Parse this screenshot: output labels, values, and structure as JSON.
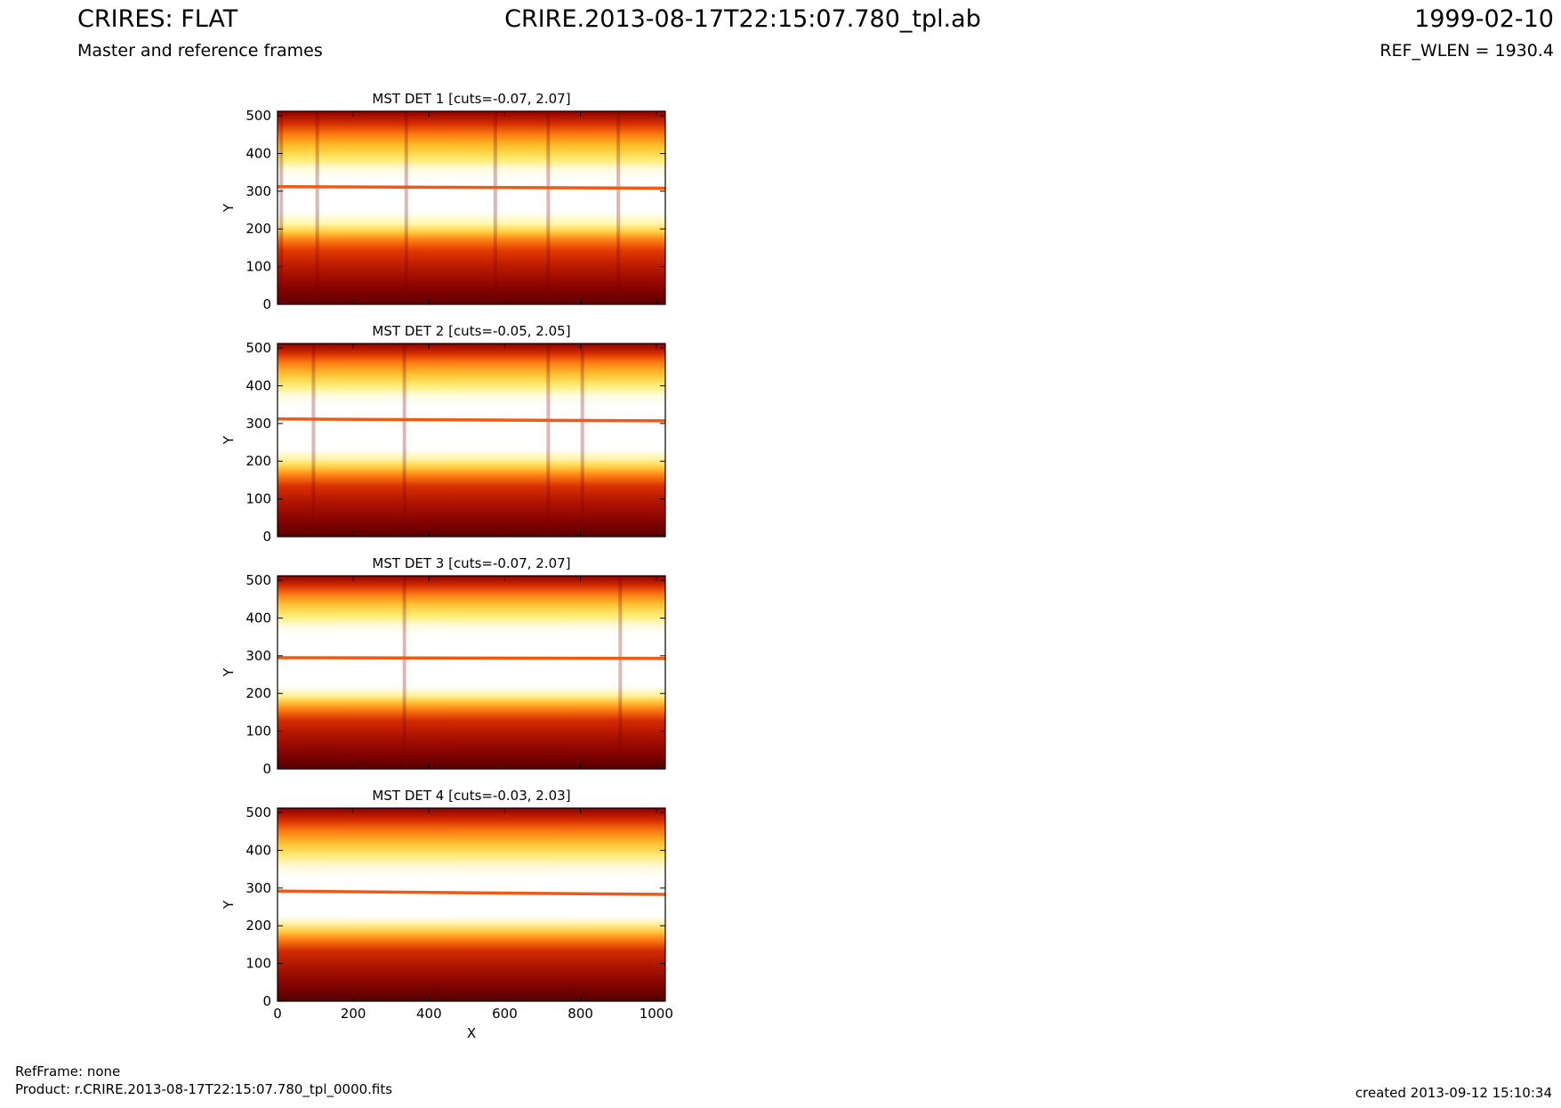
{
  "header": {
    "title_left": "CRIRES: FLAT",
    "subtitle_left": "Master and reference frames",
    "title_center": "CRIRE.2013-08-17T22:15:07.780_tpl.ab",
    "date_right": "1999-02-10",
    "refwlen_right": "REF_WLEN = 1930.4"
  },
  "footer": {
    "refframe": "RefFrame: none",
    "product": "Product: r.CRIRE.2013-08-17T22:15:07.780_tpl_0000.fits",
    "created": "created 2013-09-12 15:10:34"
  },
  "chart_data": [
    {
      "type": "heatmap",
      "title": "MST DET 1 [cuts=-0.07, 2.07]",
      "xlabel": "",
      "ylabel": "Y",
      "xlim": [
        0,
        1024
      ],
      "ylim": [
        0,
        512
      ],
      "x_ticks": [
        0,
        200,
        400,
        600,
        800,
        1000
      ],
      "y_ticks": [
        0,
        100,
        200,
        300,
        400,
        500
      ],
      "colormap": "hot",
      "cuts": [
        -0.07,
        2.07
      ],
      "horizontal_line_y": [
        312,
        308
      ],
      "vertical_streaks_x": [
        10,
        105,
        340,
        575,
        715,
        900
      ]
    },
    {
      "type": "heatmap",
      "title": "MST DET 2 [cuts=-0.05, 2.05]",
      "xlabel": "",
      "ylabel": "Y",
      "xlim": [
        0,
        1024
      ],
      "ylim": [
        0,
        512
      ],
      "x_ticks": [
        0,
        200,
        400,
        600,
        800,
        1000
      ],
      "y_ticks": [
        0,
        100,
        200,
        300,
        400,
        500
      ],
      "colormap": "hot",
      "cuts": [
        -0.05,
        2.05
      ],
      "horizontal_line_y": [
        312,
        307
      ],
      "vertical_streaks_x": [
        95,
        335,
        715,
        805
      ]
    },
    {
      "type": "heatmap",
      "title": "MST DET 3 [cuts=-0.07, 2.07]",
      "xlabel": "",
      "ylabel": "Y",
      "xlim": [
        0,
        1024
      ],
      "ylim": [
        0,
        512
      ],
      "x_ticks": [
        0,
        200,
        400,
        600,
        800,
        1000
      ],
      "y_ticks": [
        0,
        100,
        200,
        300,
        400,
        500
      ],
      "colormap": "hot",
      "cuts": [
        -0.07,
        2.07
      ],
      "horizontal_line_y": [
        295,
        293
      ],
      "vertical_streaks_x": [
        335,
        905
      ]
    },
    {
      "type": "heatmap",
      "title": "MST DET 4 [cuts=-0.03, 2.03]",
      "xlabel": "X",
      "ylabel": "Y",
      "xlim": [
        0,
        1024
      ],
      "ylim": [
        0,
        512
      ],
      "x_ticks": [
        0,
        200,
        400,
        600,
        800,
        1000
      ],
      "y_ticks": [
        0,
        100,
        200,
        300,
        400,
        500
      ],
      "colormap": "hot",
      "cuts": [
        -0.03,
        2.03
      ],
      "horizontal_line_y": [
        292,
        283
      ],
      "vertical_streaks_x": []
    }
  ]
}
